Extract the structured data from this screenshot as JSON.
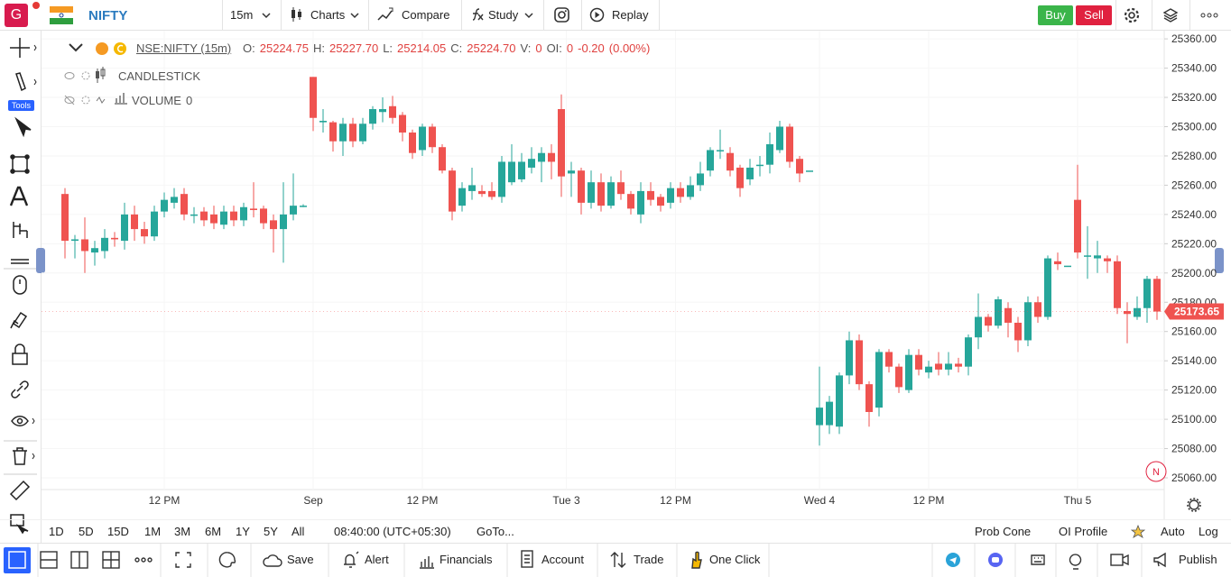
{
  "top_bar": {
    "avatar": "G",
    "symbol": "NIFTY",
    "interval": "15m",
    "buttons": [
      "Charts",
      "Compare",
      "Study",
      "Replay"
    ],
    "buy": "Buy",
    "sell": "Sell"
  },
  "left_toolbar": {
    "tools_badge": "Tools"
  },
  "legend": {
    "symbol": "NSE:NIFTY (15m)",
    "fields": [
      [
        "O:",
        "25224.75"
      ],
      [
        "H:",
        "25227.70"
      ],
      [
        "L:",
        "25214.05"
      ],
      [
        "C:",
        "25224.70"
      ],
      [
        "V:",
        "0"
      ],
      [
        "OI:",
        "0"
      ]
    ],
    "change": "-0.20",
    "change_pct": "(0.00%)",
    "series_name": "CANDLESTICK",
    "volume_name": "VOLUME",
    "volume_value": "0"
  },
  "chart_data": {
    "type": "candlestick",
    "up_color": "#26a69a",
    "down_color": "#ef5350",
    "grid": true,
    "open": [
      25254,
      25222,
      25223,
      25214,
      25215,
      25224,
      25222,
      25240,
      25230,
      25225,
      25242,
      25248,
      25254,
      25240,
      25242,
      25240,
      25233,
      25242,
      25236,
      25244,
      25244,
      25236,
      25230,
      25240,
      25246,
      25334,
      25303,
      25303,
      25290,
      25302,
      25290,
      25302,
      25310,
      25314,
      25308,
      25296,
      25284,
      25300,
      25286,
      25270,
      25246,
      25256,
      25256,
      25256,
      25252,
      25262,
      25264,
      25272,
      25276,
      25282,
      25312,
      25268,
      25270,
      25248,
      25262,
      25246,
      25262,
      25254,
      25240,
      25256,
      25252,
      25248,
      25258,
      25252,
      25260,
      25270,
      25284,
      25282,
      25272,
      25264,
      25274,
      25274,
      25284,
      25300,
      25278,
      25270,
      25096,
      25096,
      25095,
      25130,
      25154,
      25124,
      25108,
      25146,
      25136,
      25120,
      25144,
      25132,
      25138,
      25134,
      25138,
      25136,
      25156,
      25170,
      25164,
      25176,
      25166,
      25154,
      25180,
      25170,
      25208,
      25205,
      25250,
      25212,
      25210,
      25210,
      25208,
      25174,
      25170,
      25176,
      25196
    ],
    "high": [
      25258,
      25226,
      25238,
      25222,
      25230,
      25228,
      25248,
      25246,
      25235,
      25246,
      25255,
      25258,
      25258,
      25245,
      25245,
      25246,
      25246,
      25246,
      25248,
      25262,
      25246,
      25240,
      25262,
      25268,
      25247,
      25334,
      25312,
      25304,
      25306,
      25306,
      25306,
      25314,
      25320,
      25321,
      25310,
      25298,
      25302,
      25302,
      25288,
      25272,
      25262,
      25272,
      25260,
      25262,
      25280,
      25288,
      25282,
      25286,
      25286,
      25288,
      25322,
      25276,
      25272,
      25270,
      25268,
      25266,
      25270,
      25256,
      25262,
      25262,
      25254,
      25262,
      25262,
      25266,
      25276,
      25286,
      25298,
      25286,
      25274,
      25278,
      25280,
      25296,
      25304,
      25302,
      25280,
      25270,
      25136,
      25116,
      25132,
      25160,
      25158,
      25126,
      25148,
      25148,
      25138,
      25148,
      25148,
      25140,
      25146,
      25146,
      25142,
      25158,
      25186,
      25172,
      25184,
      25180,
      25170,
      25184,
      25184,
      25212,
      25214,
      25205,
      25274,
      25232,
      25222,
      25212,
      25212,
      25180,
      25184,
      25198,
      25198
    ],
    "low": [
      25210,
      25210,
      25200,
      25205,
      25210,
      25218,
      25216,
      25222,
      25220,
      25222,
      25238,
      25244,
      25236,
      25234,
      25232,
      25230,
      25230,
      25232,
      25232,
      25238,
      25230,
      25214,
      25207,
      25236,
      25245,
      25297,
      25296,
      25283,
      25280,
      25286,
      25288,
      25298,
      25303,
      25302,
      25290,
      25278,
      25280,
      25282,
      25268,
      25236,
      25242,
      25250,
      25252,
      25250,
      25248,
      25260,
      25262,
      25268,
      25262,
      25264,
      25252,
      25252,
      25240,
      25244,
      25242,
      25244,
      25250,
      25240,
      25234,
      25246,
      25242,
      25244,
      25248,
      25250,
      25256,
      25266,
      25278,
      25266,
      25252,
      25260,
      25266,
      25268,
      25282,
      25272,
      25262,
      25270,
      25082,
      25090,
      25090,
      25124,
      25120,
      25095,
      25102,
      25132,
      25118,
      25118,
      25130,
      25128,
      25130,
      25130,
      25132,
      25130,
      25148,
      25160,
      25162,
      25156,
      25146,
      25150,
      25166,
      25168,
      25202,
      25205,
      25210,
      25196,
      25200,
      25200,
      25172,
      25152,
      25168,
      25166,
      25168
    ],
    "close": [
      25222,
      25223,
      25215,
      25217,
      25224,
      25223,
      25240,
      25230,
      25225,
      25242,
      25250,
      25252,
      25240,
      25240,
      25236,
      25234,
      25242,
      25236,
      25245,
      25243,
      25234,
      25230,
      25240,
      25246,
      25246,
      25306,
      25304,
      25290,
      25302,
      25290,
      25302,
      25312,
      25312,
      25306,
      25296,
      25282,
      25300,
      25286,
      25270,
      25242,
      25258,
      25260,
      25254,
      25252,
      25276,
      25276,
      25276,
      25278,
      25282,
      25276,
      25266,
      25270,
      25248,
      25262,
      25246,
      25262,
      25254,
      25244,
      25256,
      25250,
      25246,
      25258,
      25252,
      25260,
      25268,
      25284,
      25284,
      25270,
      25258,
      25272,
      25274,
      25288,
      25300,
      25276,
      25268,
      25270,
      25108,
      25112,
      25130,
      25154,
      25124,
      25105,
      25146,
      25136,
      25122,
      25144,
      25134,
      25136,
      25134,
      25138,
      25136,
      25156,
      25170,
      25164,
      25182,
      25166,
      25154,
      25180,
      25170,
      25210,
      25206,
      25205,
      25214,
      25212,
      25212,
      25208,
      25176,
      25172,
      25176,
      25196,
      25173.65
    ],
    "ylim": [
      25052,
      25365
    ],
    "yticks": [
      {
        "value": 25060,
        "label": "25060.00"
      },
      {
        "value": 25080,
        "label": "25080.00"
      },
      {
        "value": 25100,
        "label": "25100.00"
      },
      {
        "value": 25120,
        "label": "25120.00"
      },
      {
        "value": 25140,
        "label": "25140.00"
      },
      {
        "value": 25160,
        "label": "25160.00"
      },
      {
        "value": 25180,
        "label": "25180.00"
      },
      {
        "value": 25200,
        "label": "25200.00"
      },
      {
        "value": 25220,
        "label": "25220.00"
      },
      {
        "value": 25240,
        "label": "25240.00"
      },
      {
        "value": 25260,
        "label": "25260.00"
      },
      {
        "value": 25280,
        "label": "25280.00"
      },
      {
        "value": 25300,
        "label": "25300.00"
      },
      {
        "value": 25320,
        "label": "25320.00"
      },
      {
        "value": 25340,
        "label": "25340.00"
      },
      {
        "value": 25360,
        "label": "25360.00"
      }
    ],
    "xticks": [
      {
        "value": 10,
        "label": "12 PM"
      },
      {
        "value": 25,
        "label": "Sep"
      },
      {
        "value": 36,
        "label": "12 PM"
      },
      {
        "value": 50.5,
        "label": "Tue 3"
      },
      {
        "value": 61.5,
        "label": "12 PM"
      },
      {
        "value": 76,
        "label": "Wed 4"
      },
      {
        "value": 87,
        "label": "12 PM"
      },
      {
        "value": 102,
        "label": "Thu 5"
      }
    ],
    "last_price": 25173.65,
    "marker": "N"
  },
  "range_bar": {
    "ranges": [
      "1D",
      "5D",
      "15D",
      "1M",
      "3M",
      "6M",
      "1Y",
      "5Y",
      "All"
    ],
    "time": "08:40:00 (UTC+05:30)",
    "goto": "GoTo...",
    "right": [
      "Prob Cone",
      "OI Profile"
    ],
    "auto": "Auto",
    "log": "Log"
  },
  "bottom_bar": {
    "buttons": [
      "Save",
      "Alert",
      "Financials",
      "Account",
      "Trade",
      "One Click"
    ],
    "publish": "Publish"
  }
}
